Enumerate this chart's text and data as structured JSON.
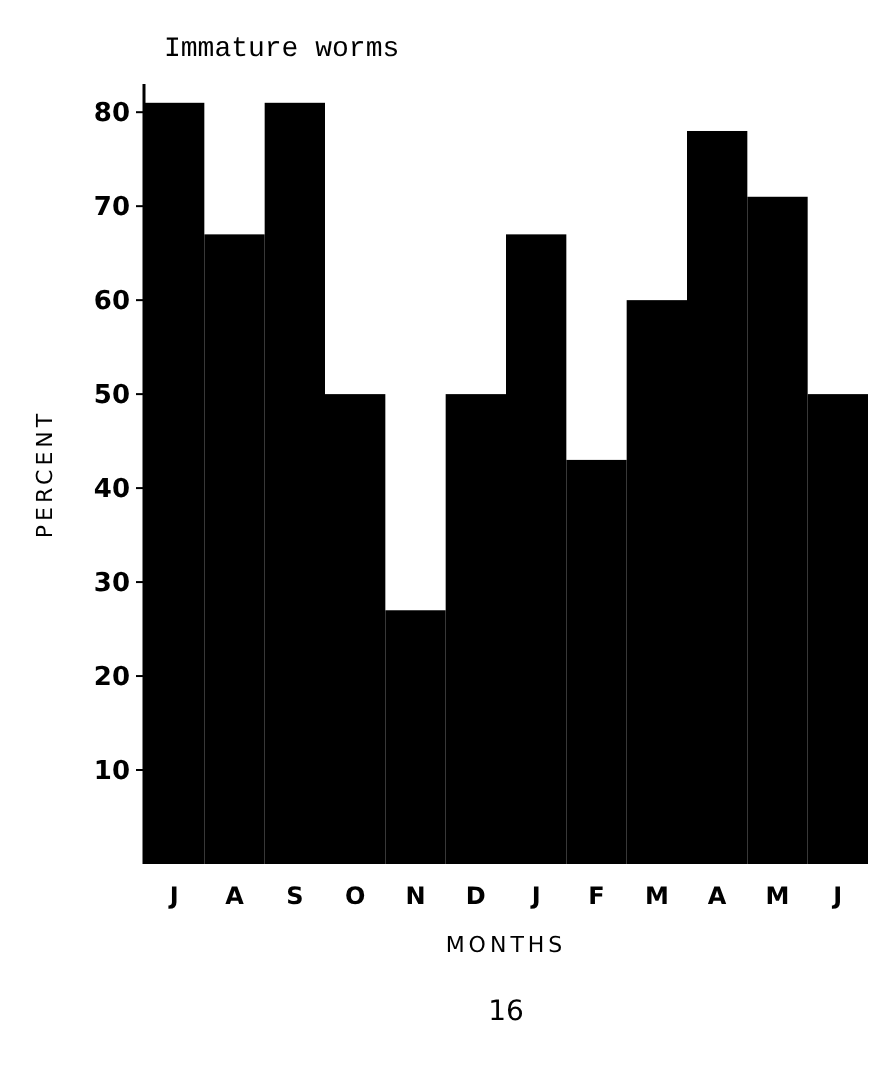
{
  "chart_data": {
    "type": "bar",
    "title": "Immature worms",
    "xlabel": "MONTHS",
    "ylabel": "PERCENT",
    "categories": [
      "J",
      "A",
      "S",
      "O",
      "N",
      "D",
      "J",
      "F",
      "M",
      "A",
      "M",
      "J"
    ],
    "values": [
      81,
      67,
      81,
      50,
      27,
      50,
      67,
      43,
      60,
      78,
      71,
      50
    ],
    "color": "#000000",
    "ylim": [
      0,
      83
    ],
    "yticks": [
      10,
      20,
      30,
      40,
      50,
      60,
      70,
      80
    ],
    "grid": false,
    "annotations": [
      "16"
    ]
  }
}
